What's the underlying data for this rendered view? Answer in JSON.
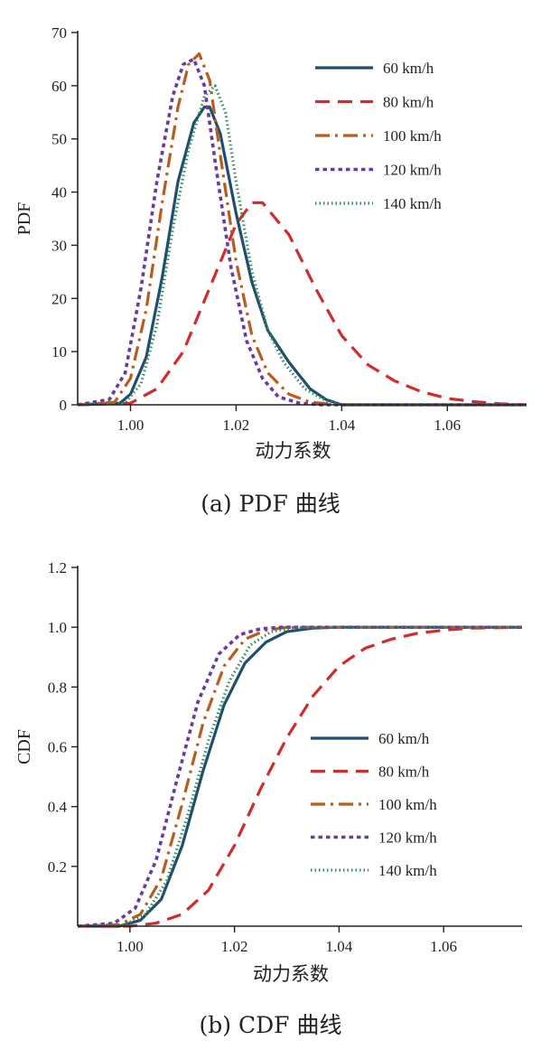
{
  "colors": {
    "60 km/h": "#1f4e6e",
    "80 km/h": "#d12c2c",
    "100 km/h": "#b85c1f",
    "120 km/h": "#6a3a9e",
    "140 km/h": "#2e8b57"
  },
  "chart_data": [
    {
      "type": "line",
      "caption": "(a) PDF 曲线",
      "xlabel": "动力系数",
      "ylabel": "PDF",
      "xlim": [
        0.99,
        1.075
      ],
      "ylim": [
        0,
        70
      ],
      "xticks": [
        1.0,
        1.02,
        1.04,
        1.06
      ],
      "xtick_labels": [
        "1.00",
        "1.02",
        "1.04",
        "1.06"
      ],
      "yticks": [
        0,
        10,
        20,
        30,
        40,
        50,
        60,
        70
      ],
      "ytick_labels": [
        "0",
        "10",
        "20",
        "30",
        "40",
        "50",
        "60",
        "70"
      ],
      "legend_position": "top-right",
      "series": [
        {
          "name": "60 km/h",
          "style": "solid",
          "x": [
            0.99,
            0.998,
            1.0,
            1.003,
            1.006,
            1.009,
            1.012,
            1.014,
            1.015,
            1.017,
            1.02,
            1.023,
            1.026,
            1.03,
            1.034,
            1.037,
            1.04,
            1.075
          ],
          "y": [
            0,
            0.3,
            2,
            9,
            24,
            42,
            53,
            56,
            56,
            51,
            36,
            23,
            14,
            8,
            3,
            1,
            0,
            0
          ]
        },
        {
          "name": "80 km/h",
          "style": "dashed",
          "x": [
            0.99,
            1.0,
            1.005,
            1.01,
            1.015,
            1.02,
            1.023,
            1.025,
            1.03,
            1.035,
            1.04,
            1.045,
            1.05,
            1.055,
            1.06,
            1.065,
            1.07,
            1.075
          ],
          "y": [
            0,
            0.3,
            3,
            10,
            22,
            34,
            38,
            38,
            32,
            22,
            13,
            7.5,
            4.5,
            2.5,
            1.2,
            0.6,
            0.2,
            0
          ]
        },
        {
          "name": "100 km/h",
          "style": "dashdot",
          "x": [
            0.99,
            0.997,
            1.0,
            1.003,
            1.006,
            1.009,
            1.011,
            1.013,
            1.015,
            1.017,
            1.02,
            1.023,
            1.026,
            1.03,
            1.034,
            1.04,
            1.075
          ],
          "y": [
            0,
            0.5,
            5,
            18,
            38,
            56,
            64,
            66,
            61,
            47,
            27,
            13,
            6,
            2,
            0.5,
            0,
            0
          ]
        },
        {
          "name": "120 km/h",
          "style": "dotted",
          "x": [
            0.99,
            0.996,
            0.999,
            1.002,
            1.005,
            1.008,
            1.01,
            1.012,
            1.014,
            1.016,
            1.019,
            1.022,
            1.025,
            1.028,
            1.032,
            1.036,
            1.075
          ],
          "y": [
            0,
            1,
            6,
            22,
            42,
            58,
            64,
            65,
            60,
            46,
            26,
            12,
            5,
            1.5,
            0.3,
            0,
            0
          ]
        },
        {
          "name": "140 km/h",
          "style": "fine-dotted",
          "x": [
            0.99,
            0.999,
            1.002,
            1.005,
            1.008,
            1.011,
            1.014,
            1.016,
            1.018,
            1.02,
            1.023,
            1.026,
            1.029,
            1.033,
            1.037,
            1.04,
            1.075
          ],
          "y": [
            0,
            0.3,
            4,
            15,
            33,
            48,
            58,
            60,
            55,
            42,
            25,
            14,
            8,
            3,
            0.8,
            0,
            0
          ]
        }
      ]
    },
    {
      "type": "line",
      "caption": "(b) CDF 曲线",
      "xlabel": "动力系数",
      "ylabel": "CDF",
      "xlim": [
        0.99,
        1.075
      ],
      "ylim": [
        0,
        1.2
      ],
      "xticks": [
        1.0,
        1.02,
        1.04,
        1.06
      ],
      "xtick_labels": [
        "1.00",
        "1.02",
        "1.04",
        "1.06"
      ],
      "yticks": [
        0.2,
        0.4,
        0.6,
        0.8,
        1.0,
        1.2
      ],
      "ytick_labels": [
        "0.2",
        "0.4",
        "0.6",
        "0.8",
        "1.0",
        "1.2"
      ],
      "legend_position": "center-right",
      "series": [
        {
          "name": "60 km/h",
          "style": "solid",
          "x": [
            0.99,
            0.998,
            1.002,
            1.006,
            1.01,
            1.014,
            1.018,
            1.022,
            1.026,
            1.03,
            1.035,
            1.04,
            1.075
          ],
          "y": [
            0,
            0,
            0.02,
            0.09,
            0.27,
            0.52,
            0.74,
            0.88,
            0.95,
            0.985,
            0.997,
            1.0,
            1.0
          ]
        },
        {
          "name": "80 km/h",
          "style": "dashed",
          "x": [
            0.99,
            1.0,
            1.005,
            1.01,
            1.015,
            1.02,
            1.025,
            1.03,
            1.035,
            1.04,
            1.045,
            1.05,
            1.055,
            1.06,
            1.065,
            1.075
          ],
          "y": [
            0,
            0,
            0.01,
            0.04,
            0.12,
            0.27,
            0.46,
            0.63,
            0.77,
            0.87,
            0.93,
            0.96,
            0.98,
            0.99,
            0.997,
            1.0
          ]
        },
        {
          "name": "100 km/h",
          "style": "dashdot",
          "x": [
            0.99,
            0.998,
            1.002,
            1.006,
            1.01,
            1.014,
            1.018,
            1.022,
            1.026,
            1.03,
            1.04,
            1.075
          ],
          "y": [
            0,
            0.005,
            0.04,
            0.16,
            0.41,
            0.68,
            0.87,
            0.96,
            0.99,
            1.0,
            1.0,
            1.0
          ]
        },
        {
          "name": "120 km/h",
          "style": "dotted",
          "x": [
            0.99,
            0.997,
            1.001,
            1.005,
            1.009,
            1.013,
            1.017,
            1.021,
            1.025,
            1.029,
            1.04,
            1.075
          ],
          "y": [
            0,
            0.01,
            0.06,
            0.22,
            0.49,
            0.75,
            0.91,
            0.975,
            0.995,
            1.0,
            1.0,
            1.0
          ]
        },
        {
          "name": "140 km/h",
          "style": "fine-dotted",
          "x": [
            0.99,
            0.999,
            1.003,
            1.007,
            1.011,
            1.015,
            1.019,
            1.023,
            1.027,
            1.031,
            1.04,
            1.075
          ],
          "y": [
            0,
            0.005,
            0.04,
            0.15,
            0.37,
            0.62,
            0.82,
            0.94,
            0.985,
            0.998,
            1.0,
            1.0
          ]
        }
      ]
    }
  ]
}
